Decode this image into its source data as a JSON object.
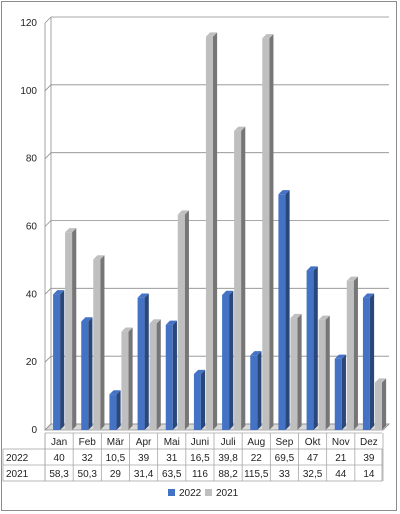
{
  "chart_data": {
    "type": "bar",
    "title": "",
    "xlabel": "",
    "ylabel": "",
    "ylim": [
      0,
      120
    ],
    "y_ticks": [
      0,
      20,
      40,
      60,
      80,
      100,
      120
    ],
    "grid": true,
    "legend_position": "bottom",
    "categories": [
      "Jan",
      "Feb",
      "Mär",
      "Apr",
      "Mai",
      "Juni",
      "Juli",
      "Aug",
      "Sep",
      "Okt",
      "Nov",
      "Dez"
    ],
    "series": [
      {
        "name": "2022",
        "color": "#4472c4",
        "values": [
          40,
          32,
          10.5,
          39,
          31,
          16.5,
          39.8,
          22,
          69.5,
          47,
          21,
          39
        ],
        "labels": [
          "40",
          "32",
          "10,5",
          "39",
          "31",
          "16,5",
          "39,8",
          "22",
          "69,5",
          "47",
          "21",
          "39"
        ]
      },
      {
        "name": "2021",
        "color": "#bfbfbf",
        "values": [
          58.3,
          50.3,
          29,
          31.4,
          63.5,
          116,
          88.2,
          115.5,
          33,
          32.5,
          44,
          14
        ],
        "labels": [
          "58,3",
          "50,3",
          "29",
          "31,4",
          "63,5",
          "116",
          "88,2",
          "115,5",
          "33",
          "32,5",
          "44",
          "14"
        ]
      }
    ]
  }
}
